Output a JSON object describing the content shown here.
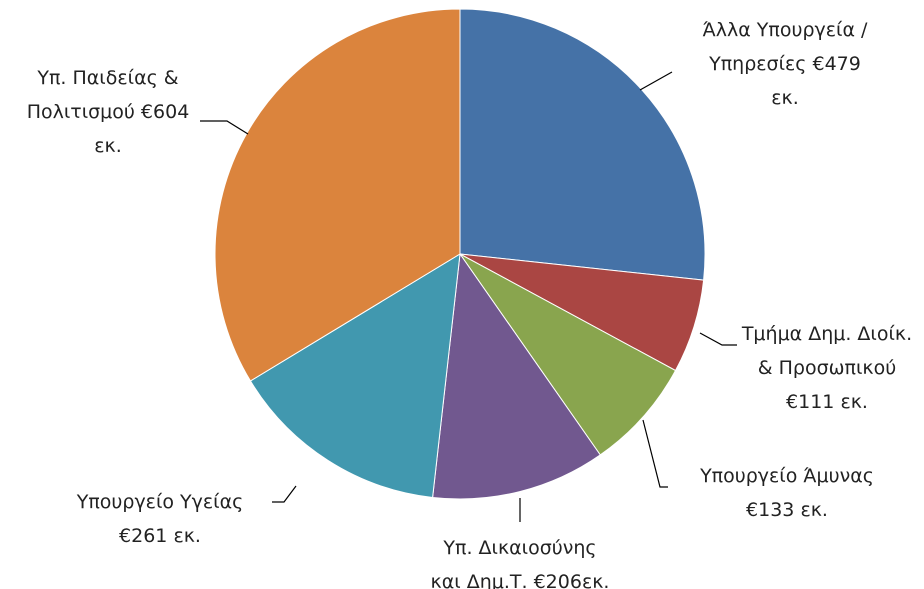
{
  "chart_data": {
    "type": "pie",
    "categories": [
      "Άλλα Υπουργεία /\nΥπηρεσίες €479\nεκ.",
      "Τμήμα Δημ. Διοίκ.\n& Προσωπικού\n€111 εκ.",
      "Υπουργείο Άμυνας\n€133 εκ.",
      "Υπ. Δικαιοσύνης\nκαι Δημ.Τ. €206εκ.",
      "Υπουργείο Υγείας\n€261 εκ.",
      "Υπ. Παιδείας &\nΠολιτισμού €604\nεκ."
    ],
    "values": [
      479,
      111,
      133,
      206,
      261,
      604
    ],
    "colors": [
      "#4572a7",
      "#aa4643",
      "#89a54e",
      "#71588f",
      "#4198af",
      "#db843d"
    ]
  }
}
